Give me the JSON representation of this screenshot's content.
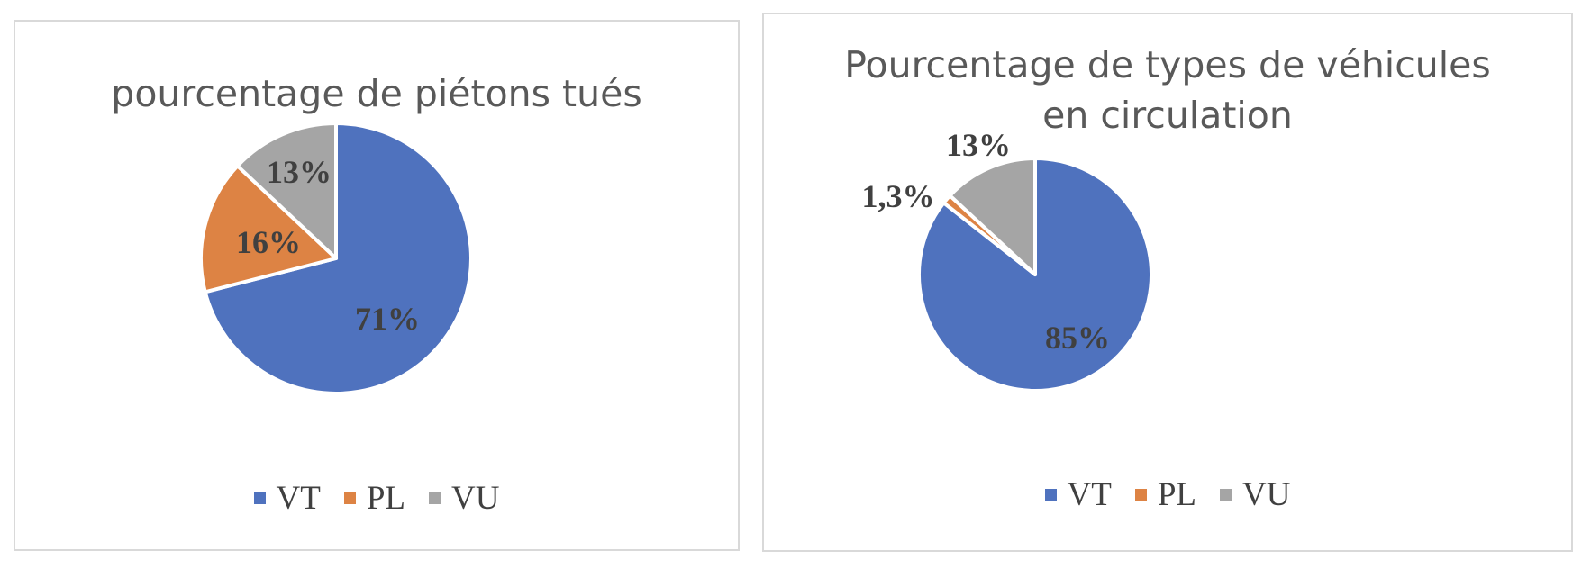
{
  "chart_data": [
    {
      "type": "pie",
      "title": "pourcentage de piétons tués",
      "categories": [
        "VT",
        "PL",
        "VU"
      ],
      "values": [
        71,
        16,
        13
      ],
      "labels": [
        "71%",
        "16%",
        "13%"
      ],
      "colors": [
        "#4f72be",
        "#dd8344",
        "#a5a5a5"
      ],
      "legend": "bottom"
    },
    {
      "type": "pie",
      "title": "Pourcentage de types de véhicules\nen circulation",
      "categories": [
        "VT",
        "PL",
        "VU"
      ],
      "values": [
        85,
        1.3,
        13
      ],
      "labels": [
        "85%",
        "1,3%",
        "13%"
      ],
      "colors": [
        "#4f72be",
        "#dd8344",
        "#a5a5a5"
      ],
      "legend": "bottom"
    }
  ]
}
